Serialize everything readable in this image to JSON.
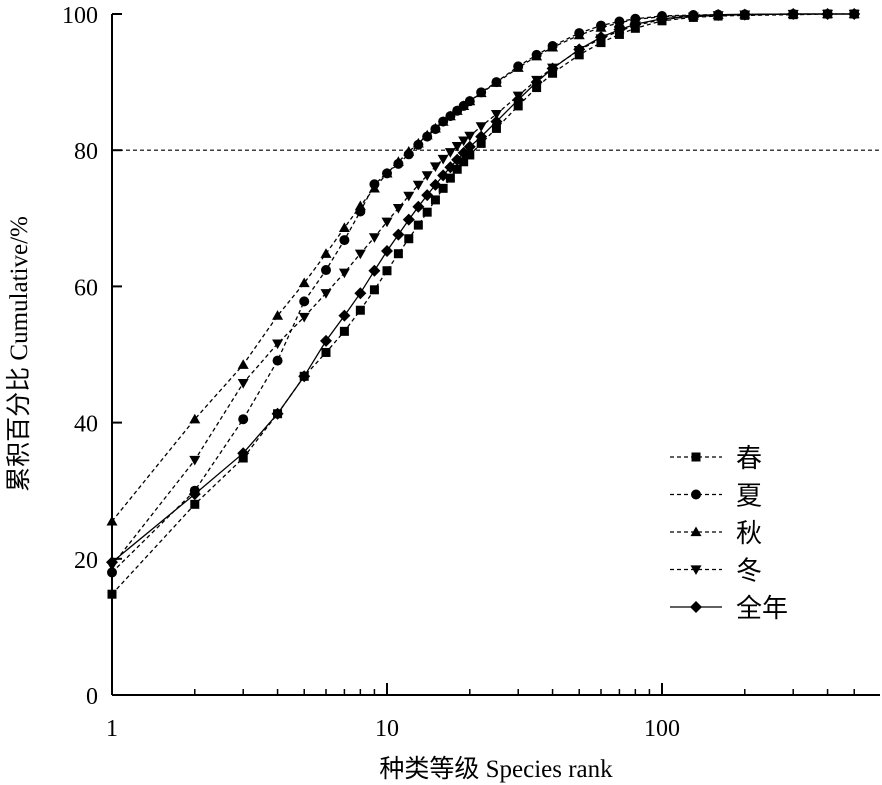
{
  "chart_data": {
    "type": "line",
    "x_scale": "log",
    "xlabel": "种类等级 Species rank",
    "ylabel": "累积百分比 Cumulative/%",
    "xlim": [
      1,
      550
    ],
    "ylim": [
      0,
      100
    ],
    "x_ticks": [
      {
        "value": 1,
        "label": "1"
      },
      {
        "value": 10,
        "label": "10"
      },
      {
        "value": 100,
        "label": "100"
      }
    ],
    "y_ticks": [
      {
        "value": 0,
        "label": "0"
      },
      {
        "value": 20,
        "label": "20"
      },
      {
        "value": 40,
        "label": "40"
      },
      {
        "value": 60,
        "label": "60"
      },
      {
        "value": 80,
        "label": "80"
      },
      {
        "value": 100,
        "label": "100"
      }
    ],
    "reference_line": {
      "y": 80,
      "style": "dashed"
    },
    "grid": false,
    "legend": {
      "position": "bottom-right"
    },
    "series": [
      {
        "name": "春",
        "marker": "square",
        "line": "dashed",
        "x": [
          1,
          2,
          3,
          4,
          5,
          6,
          7,
          8,
          9,
          10,
          11,
          12,
          13,
          14,
          15,
          16,
          17,
          18,
          19,
          20,
          22,
          25,
          30,
          35,
          40,
          50,
          60,
          70,
          80,
          100,
          130,
          160,
          200,
          300,
          400,
          500
        ],
        "y": [
          14.8,
          28.0,
          34.8,
          41.3,
          46.8,
          50.3,
          53.4,
          56.5,
          59.5,
          62.3,
          64.8,
          67.0,
          69.0,
          70.9,
          72.7,
          74.4,
          75.9,
          77.2,
          78.3,
          79.3,
          81.0,
          83.2,
          86.5,
          89.2,
          91.3,
          94.0,
          95.8,
          97.0,
          97.9,
          99.0,
          99.5,
          99.7,
          99.8,
          99.9,
          100.0,
          100.0
        ]
      },
      {
        "name": "夏",
        "marker": "circle",
        "line": "dashed",
        "x": [
          1,
          2,
          3,
          4,
          5,
          6,
          7,
          8,
          9,
          10,
          11,
          12,
          13,
          14,
          15,
          16,
          17,
          18,
          19,
          20,
          22,
          25,
          30,
          35,
          40,
          50,
          60,
          70,
          80,
          100,
          130,
          160,
          200,
          300,
          400,
          500
        ],
        "y": [
          18.0,
          30.0,
          40.5,
          49.1,
          57.8,
          62.4,
          66.8,
          71.0,
          75.0,
          76.6,
          78.0,
          79.4,
          80.8,
          82.0,
          83.1,
          84.2,
          85.0,
          85.8,
          86.5,
          87.2,
          88.5,
          90.0,
          92.3,
          94.0,
          95.3,
          97.2,
          98.3,
          98.9,
          99.3,
          99.7,
          99.85,
          99.9,
          99.95,
          100.0,
          100.0,
          100.0
        ]
      },
      {
        "name": "秋",
        "marker": "triangle-up",
        "line": "dashed",
        "x": [
          1,
          2,
          3,
          4,
          5,
          6,
          7,
          8,
          9,
          10,
          11,
          12,
          13,
          14,
          15,
          16,
          17,
          18,
          19,
          20,
          22,
          25,
          30,
          35,
          40,
          50,
          60,
          70,
          80,
          100,
          130,
          160,
          200,
          300,
          400,
          500
        ],
        "y": [
          25.5,
          40.5,
          48.5,
          55.7,
          60.5,
          64.8,
          68.6,
          71.8,
          74.4,
          76.6,
          78.3,
          79.8,
          81.0,
          82.2,
          83.2,
          84.2,
          85.0,
          85.8,
          86.5,
          87.2,
          88.4,
          89.9,
          92.1,
          93.8,
          95.1,
          96.9,
          98.0,
          98.7,
          99.2,
          99.6,
          99.8,
          99.9,
          99.95,
          100.0,
          100.0,
          100.0
        ]
      },
      {
        "name": "冬",
        "marker": "triangle-down",
        "line": "dashed",
        "x": [
          1,
          2,
          3,
          4,
          5,
          6,
          7,
          8,
          9,
          10,
          11,
          12,
          13,
          14,
          15,
          16,
          17,
          18,
          19,
          20,
          22,
          25,
          30,
          35,
          40,
          50,
          60,
          70,
          80,
          100,
          130,
          160,
          200,
          300,
          400,
          500
        ],
        "y": [
          19.0,
          34.5,
          45.8,
          51.6,
          55.5,
          59.0,
          62.0,
          64.8,
          67.2,
          69.5,
          71.5,
          73.3,
          74.9,
          76.3,
          77.6,
          78.7,
          79.7,
          80.6,
          81.4,
          82.1,
          83.5,
          85.3,
          88.0,
          90.3,
          92.1,
          94.7,
          96.4,
          97.5,
          98.3,
          99.2,
          99.6,
          99.8,
          99.9,
          100.0,
          100.0,
          100.0
        ]
      },
      {
        "name": "全年",
        "marker": "diamond",
        "line": "solid",
        "x": [
          1,
          2,
          3,
          4,
          5,
          6,
          7,
          8,
          9,
          10,
          11,
          12,
          13,
          14,
          15,
          16,
          17,
          18,
          19,
          20,
          22,
          25,
          30,
          35,
          40,
          50,
          60,
          70,
          80,
          100,
          130,
          160,
          200,
          300,
          400,
          500
        ],
        "y": [
          19.5,
          29.5,
          35.5,
          41.3,
          46.8,
          52.0,
          55.7,
          59.0,
          62.3,
          65.2,
          67.6,
          69.8,
          71.7,
          73.4,
          74.9,
          76.3,
          77.5,
          78.6,
          79.6,
          80.5,
          82.0,
          84.2,
          87.4,
          90.0,
          92.0,
          94.8,
          96.6,
          97.7,
          98.5,
          99.3,
          99.7,
          99.85,
          99.9,
          100.0,
          100.0,
          100.0
        ]
      }
    ]
  }
}
